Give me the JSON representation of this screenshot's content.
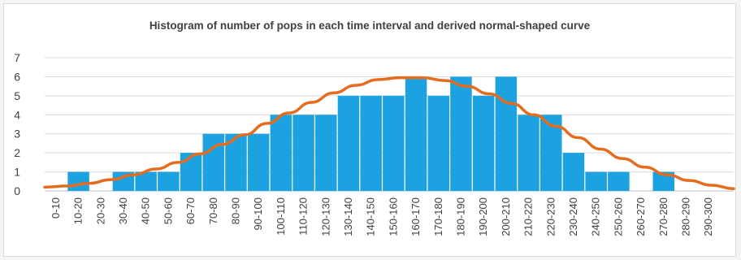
{
  "chart_data": {
    "type": "bar",
    "title": "Histogram of number of pops in each time interval and derived normal-shaped curve",
    "xlabel": "",
    "ylabel": "",
    "ylim": [
      0,
      7
    ],
    "yticks": [
      0,
      1,
      2,
      3,
      4,
      5,
      6,
      7
    ],
    "grid": true,
    "legend": "none",
    "categories": [
      "0-10",
      "10-20",
      "20-30",
      "30-40",
      "40-50",
      "50-60",
      "60-70",
      "70-80",
      "80-90",
      "90-100",
      "100-110",
      "110-120",
      "120-130",
      "130-140",
      "140-150",
      "150-160",
      "160-170",
      "170-180",
      "180-190",
      "190-200",
      "200-210",
      "210-220",
      "220-230",
      "230-240",
      "240-250",
      "250-260",
      "260-270",
      "270-280",
      "280-290",
      "290-300"
    ],
    "values": [
      0,
      1,
      0,
      1,
      1,
      1,
      2,
      3,
      3,
      3,
      4,
      4,
      4,
      5,
      5,
      5,
      6,
      5,
      6,
      5,
      6,
      4,
      4,
      2,
      1,
      1,
      0,
      1,
      0,
      0
    ],
    "curve": {
      "type": "line",
      "description_values": [
        0.2,
        0.26,
        0.4,
        0.6,
        0.85,
        1.15,
        1.5,
        1.95,
        2.45,
        2.95,
        3.55,
        4.1,
        4.65,
        5.15,
        5.55,
        5.85,
        5.95,
        5.95,
        5.8,
        5.5,
        5.1,
        4.6,
        4.0,
        3.4,
        2.8,
        2.2,
        1.7,
        1.25,
        0.85,
        0.55,
        0.3,
        0.12
      ]
    },
    "colors": {
      "bar": "#1ca2e0",
      "curve": "#e46c1f",
      "grid": "#d9d9d9",
      "axis": "#bfbfbf"
    }
  }
}
